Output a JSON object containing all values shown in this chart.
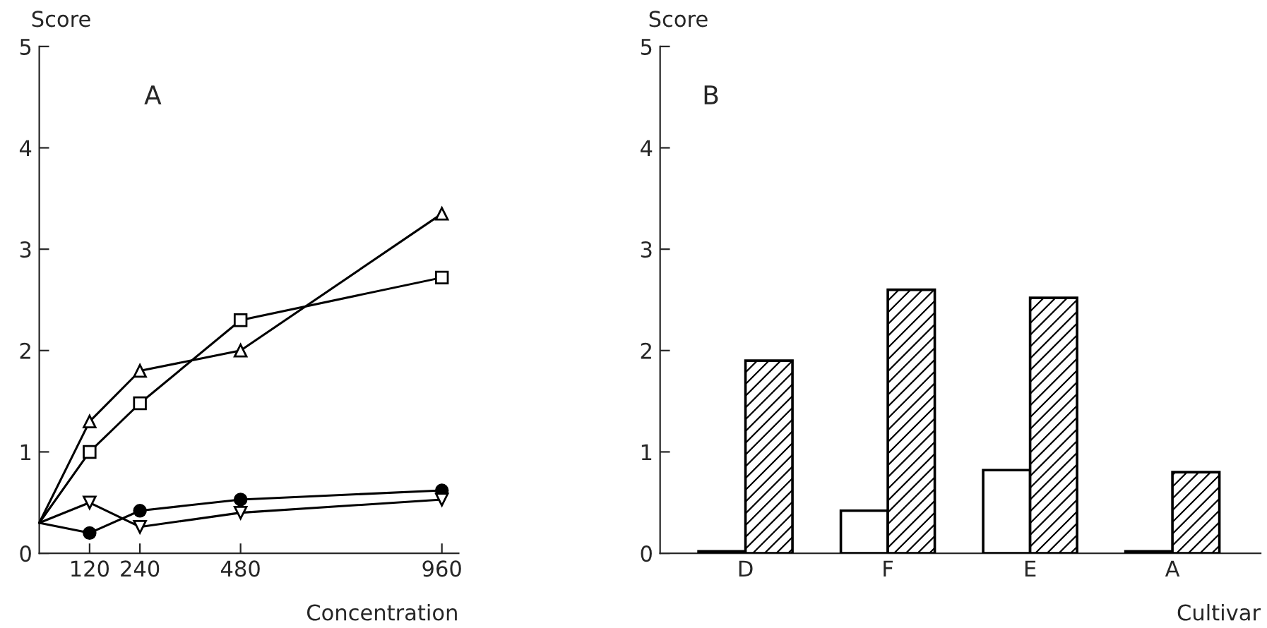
{
  "chart_data": [
    {
      "type": "line",
      "ylabel": "Score",
      "xlabel": "Concentration",
      "annotations": [
        "A"
      ],
      "xlim": [
        0,
        1000
      ],
      "xticks": [
        120,
        240,
        480,
        960
      ],
      "ylim": [
        0,
        5
      ],
      "yticks": [
        0,
        1,
        2,
        3,
        4,
        5
      ],
      "grid": false,
      "legend": false,
      "line_style": "solid",
      "series": [
        {
          "color": "#000000",
          "marker": "triangle",
          "x": [
            0,
            120,
            240,
            480,
            960
          ],
          "values": [
            0.3,
            1.3,
            1.8,
            2.0,
            3.35
          ]
        },
        {
          "color": "#000000",
          "marker": "square",
          "x": [
            0,
            120,
            240,
            480,
            960
          ],
          "values": [
            0.3,
            1.0,
            1.48,
            2.3,
            2.72
          ]
        },
        {
          "color": "#000000",
          "marker": "circle",
          "x": [
            0,
            120,
            240,
            480,
            960
          ],
          "values": [
            0.3,
            0.2,
            0.42,
            0.53,
            0.62
          ]
        },
        {
          "color": "#000000",
          "marker": "triangle_down",
          "x": [
            0,
            120,
            240,
            480,
            960
          ],
          "values": [
            0.3,
            0.5,
            0.26,
            0.4,
            0.53
          ]
        }
      ]
    },
    {
      "type": "bar",
      "ylabel": "Score",
      "xlabel": "Cultivar",
      "annotations": [
        "B"
      ],
      "categories": [
        "D",
        "F",
        "E",
        "A"
      ],
      "ylim": [
        0,
        5
      ],
      "yticks": [
        0,
        1,
        2,
        3,
        4,
        5
      ],
      "grid": false,
      "legend": false,
      "series": [
        {
          "color": "#ffffff",
          "values": [
            0.02,
            0.42,
            0.82,
            0.02
          ]
        },
        {
          "color": "#000000",
          "values": [
            1.9,
            2.6,
            2.52,
            0.8
          ]
        }
      ]
    }
  ]
}
